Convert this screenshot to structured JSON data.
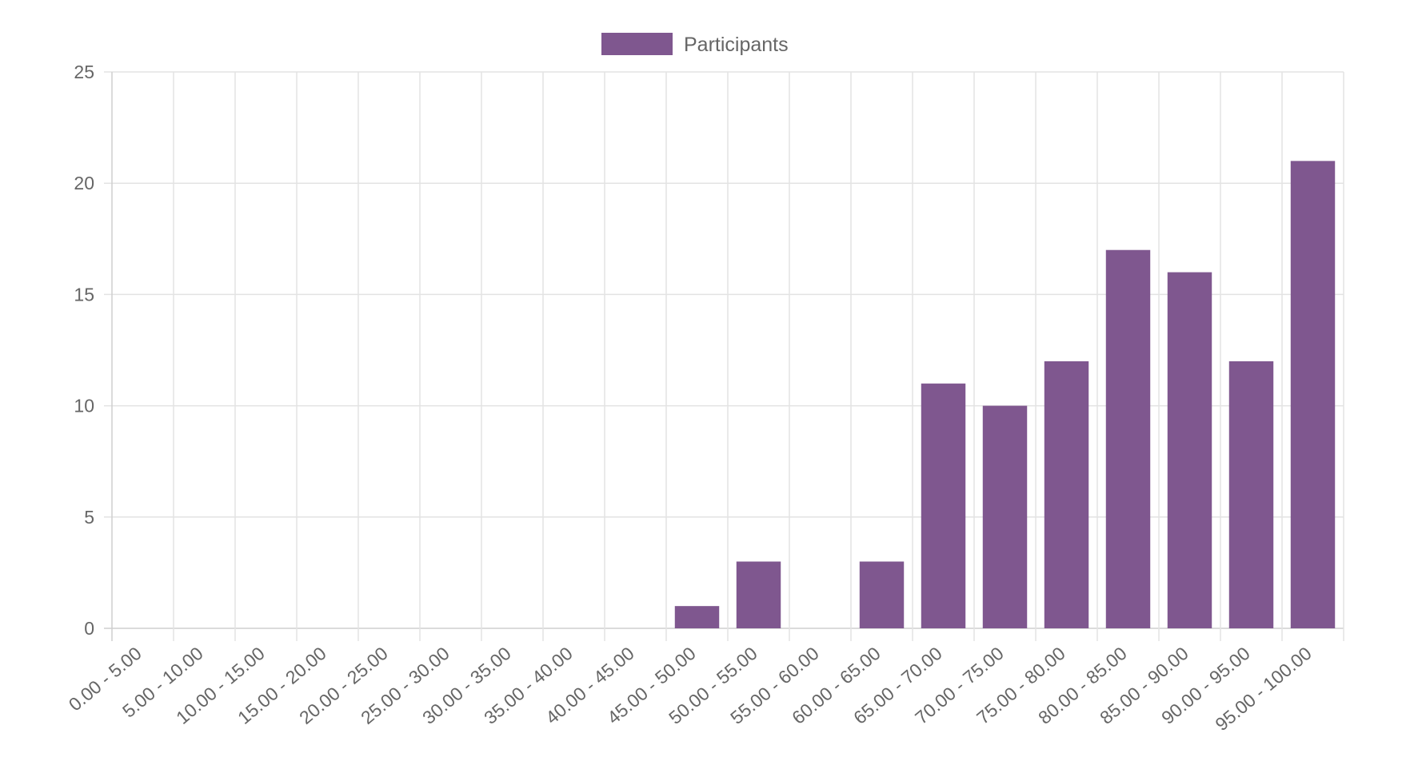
{
  "chart_data": {
    "type": "bar",
    "title": "",
    "xlabel": "",
    "ylabel": "",
    "ylim": [
      0,
      25
    ],
    "yticks": [
      0,
      5,
      10,
      15,
      20,
      25
    ],
    "grid": true,
    "legend_position": "top-center",
    "categories": [
      "0.00 - 5.00",
      "5.00 - 10.00",
      "10.00 - 15.00",
      "15.00 - 20.00",
      "20.00 - 25.00",
      "25.00 - 30.00",
      "30.00 - 35.00",
      "35.00 - 40.00",
      "40.00 - 45.00",
      "45.00 - 50.00",
      "50.00 - 55.00",
      "55.00 - 60.00",
      "60.00 - 65.00",
      "65.00 - 70.00",
      "70.00 - 75.00",
      "75.00 - 80.00",
      "80.00 - 85.00",
      "85.00 - 90.00",
      "90.00 - 95.00",
      "95.00 - 100.00"
    ],
    "series": [
      {
        "name": "Participants",
        "color": "#7f578f",
        "values": [
          0,
          0,
          0,
          0,
          0,
          0,
          0,
          0,
          0,
          1,
          3,
          0,
          3,
          11,
          10,
          12,
          17,
          16,
          12,
          21
        ]
      }
    ]
  }
}
